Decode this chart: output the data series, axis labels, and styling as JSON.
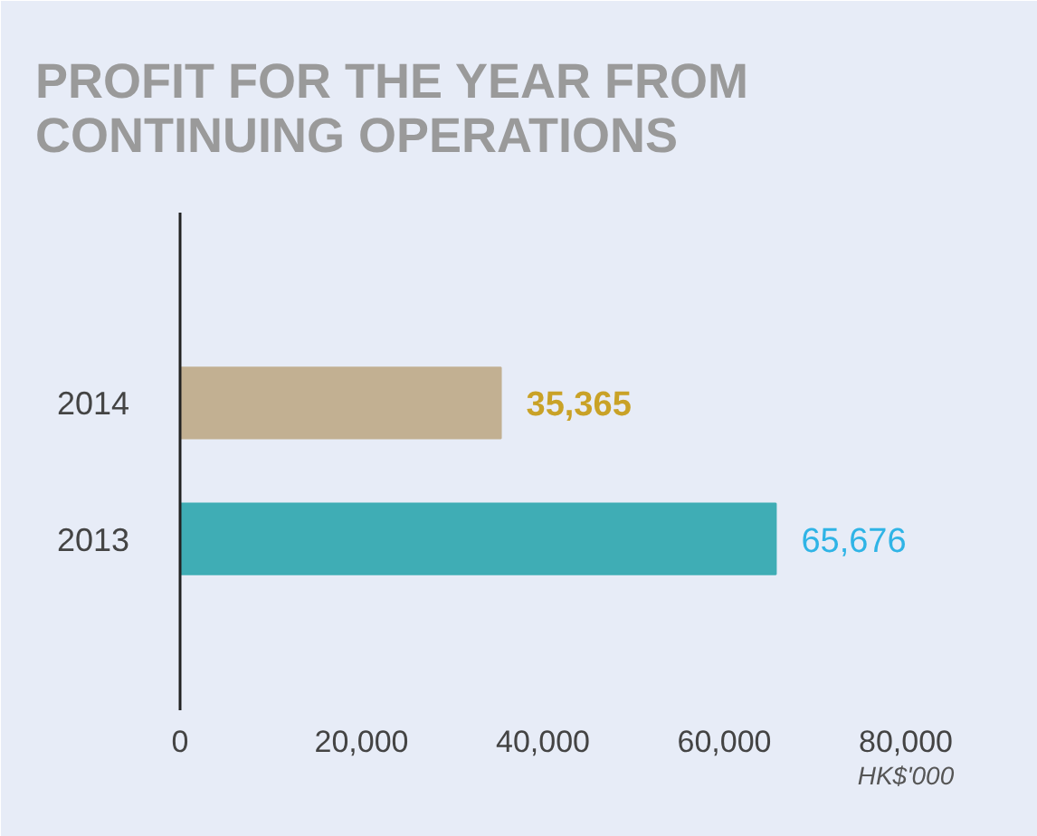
{
  "chart_data": {
    "type": "bar",
    "orientation": "horizontal",
    "title": "PROFIT FOR THE YEAR FROM\nCONTINUING OPERATIONS",
    "xlabel": "HK$'000",
    "categories": [
      "2014",
      "2013"
    ],
    "values": [
      35365,
      65676
    ],
    "colors": [
      "#c2b092",
      "#3fadb5"
    ],
    "value_labels": [
      "35,365",
      "65,676"
    ],
    "xlim": [
      0,
      80000
    ],
    "xticks": [
      0,
      {
        "value": 20000,
        "label": "20,000"
      },
      {
        "value": 40000,
        "label": "40,000"
      },
      {
        "value": 60000,
        "label": "60,000"
      },
      {
        "value": 80000,
        "label": "80,000"
      }
    ],
    "grid": false
  }
}
